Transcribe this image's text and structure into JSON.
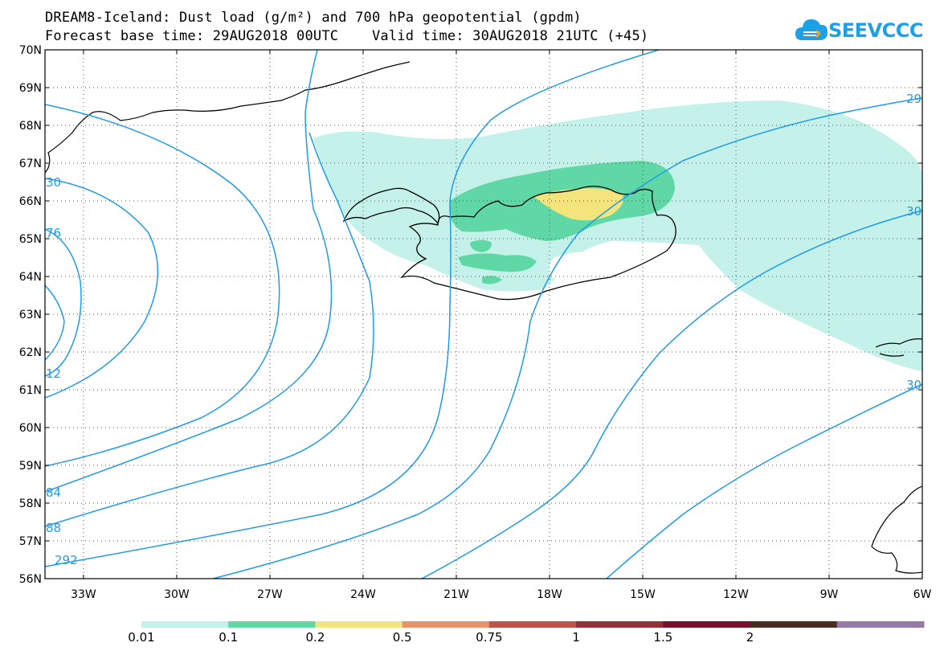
{
  "title": {
    "line1": "DREAM8-Iceland: Dust load (g/m²) and 700 hPa geopotential (gpdm)",
    "line2": "Forecast base time: 29AUG2018 00UTC    Valid time: 30AUG2018 21UTC (+45)"
  },
  "logo": {
    "text": "SEEVCCC",
    "icon": "cloud-icon",
    "color": "#1da1e6"
  },
  "lat_labels": [
    "70N",
    "69N",
    "68N",
    "67N",
    "66N",
    "65N",
    "64N",
    "63N",
    "62N",
    "61N",
    "60N",
    "59N",
    "58N",
    "57N",
    "56N"
  ],
  "lon_labels": [
    "33W",
    "30W",
    "27W",
    "24W",
    "21W",
    "18W",
    "15W",
    "12W",
    "9W",
    "6W"
  ],
  "contour_labels": [
    "30",
    "76",
    "12",
    "84",
    "88",
    "292",
    "29",
    "30",
    "30"
  ],
  "colorbar": {
    "colors": [
      "#c4f1e9",
      "#5fd8a6",
      "#f3e47c",
      "#e8946a",
      "#c0524a",
      "#962f38",
      "#7a0f2e",
      "#4a2d20",
      "#967aa8"
    ],
    "labels": [
      "0.01",
      "0.1",
      "0.2",
      "0.5",
      "0.75",
      "1",
      "1.5",
      "2"
    ]
  },
  "colors": {
    "contour": "#1f9be8",
    "coast": "#000000",
    "grid": "#555555"
  }
}
